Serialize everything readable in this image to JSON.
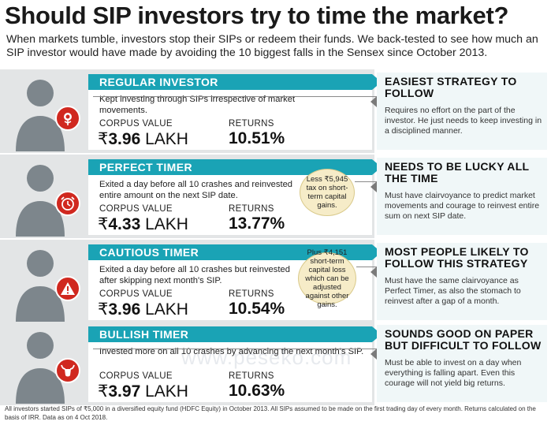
{
  "header": {
    "title": "Should SIP investors try to time the market?",
    "subtitle": "When markets tumble, investors stop their SIPs or redeem their funds. We back-tested to see how much an SIP investor would have made by avoiding the 10 biggest falls in the Sensex since October 2013."
  },
  "labels": {
    "corpus": "CORPUS VALUE",
    "returns": "RETURNS"
  },
  "rows": [
    {
      "name": "REGULAR INVESTOR",
      "description": "Kept investing through SIPs irrespective of market movements.",
      "corpus_symbol": "₹",
      "corpus_amount": "3.96",
      "corpus_unit": "LAKH",
      "returns": "10.51%",
      "icon": "rose-icon",
      "note": "",
      "side_title": "EASIEST STRATEGY TO FOLLOW",
      "side_text": "Requires no effort on the part of the investor. He just needs to keep investing in a disciplined manner."
    },
    {
      "name": "PERFECT TIMER",
      "description": "Exited a day before all 10 crashes and reinvested entire amount on the next SIP date.",
      "corpus_symbol": "₹",
      "corpus_amount": "4.33",
      "corpus_unit": "LAKH",
      "returns": "13.77%",
      "icon": "alarm-clock-icon",
      "note": "Less ₹5,945 tax on short-term capital gains.",
      "side_title": "NEEDS TO BE LUCKY ALL THE TIME",
      "side_text": "Must have clairvoyance to predict market movements and courage to reinvest entire sum on next SIP date."
    },
    {
      "name": "CAUTIOUS TIMER",
      "description": "Exited a day before all 10 crashes but reinvested after skipping next month's SIP.",
      "corpus_symbol": "₹",
      "corpus_amount": "3.96",
      "corpus_unit": "LAKH",
      "returns": "10.54%",
      "icon": "warning-icon",
      "note": "Plus ₹4,151 short-term capital loss which can be adjusted against other gains.",
      "side_title": "MOST PEOPLE LIKELY TO FOLLOW THIS STRATEGY",
      "side_text": "Must have the same clairvoyance as Perfect Timer, as also the stomach to reinvest after a gap of a month."
    },
    {
      "name": "BULLISH TIMER",
      "description": "Invested more on all 10 crashes by advancing the next month's SIP.",
      "corpus_symbol": "₹",
      "corpus_amount": "3.97",
      "corpus_unit": "LAKH",
      "returns": "10.63%",
      "icon": "bull-icon",
      "note": "",
      "side_title": "SOUNDS GOOD ON PAPER BUT DIFFICULT TO FOLLOW",
      "side_text": "Must be able to invest on a day when everything is falling apart. Even this courage will not yield big returns."
    }
  ],
  "footer": "All investors started SIPs of ₹5,000 in a diversified equity fund (HDFC Equity) in October 2013. All SIPs assumed to be made on the first trading day of every month. Returns calculated on the basis of IRR. Data as on 4 Oct 2018.",
  "watermark": "www.peseko.com",
  "colors": {
    "banner": "#1aa3b5",
    "badge": "#d0281f",
    "panel": "#e3e5e6",
    "note": "#f6ecc8"
  }
}
